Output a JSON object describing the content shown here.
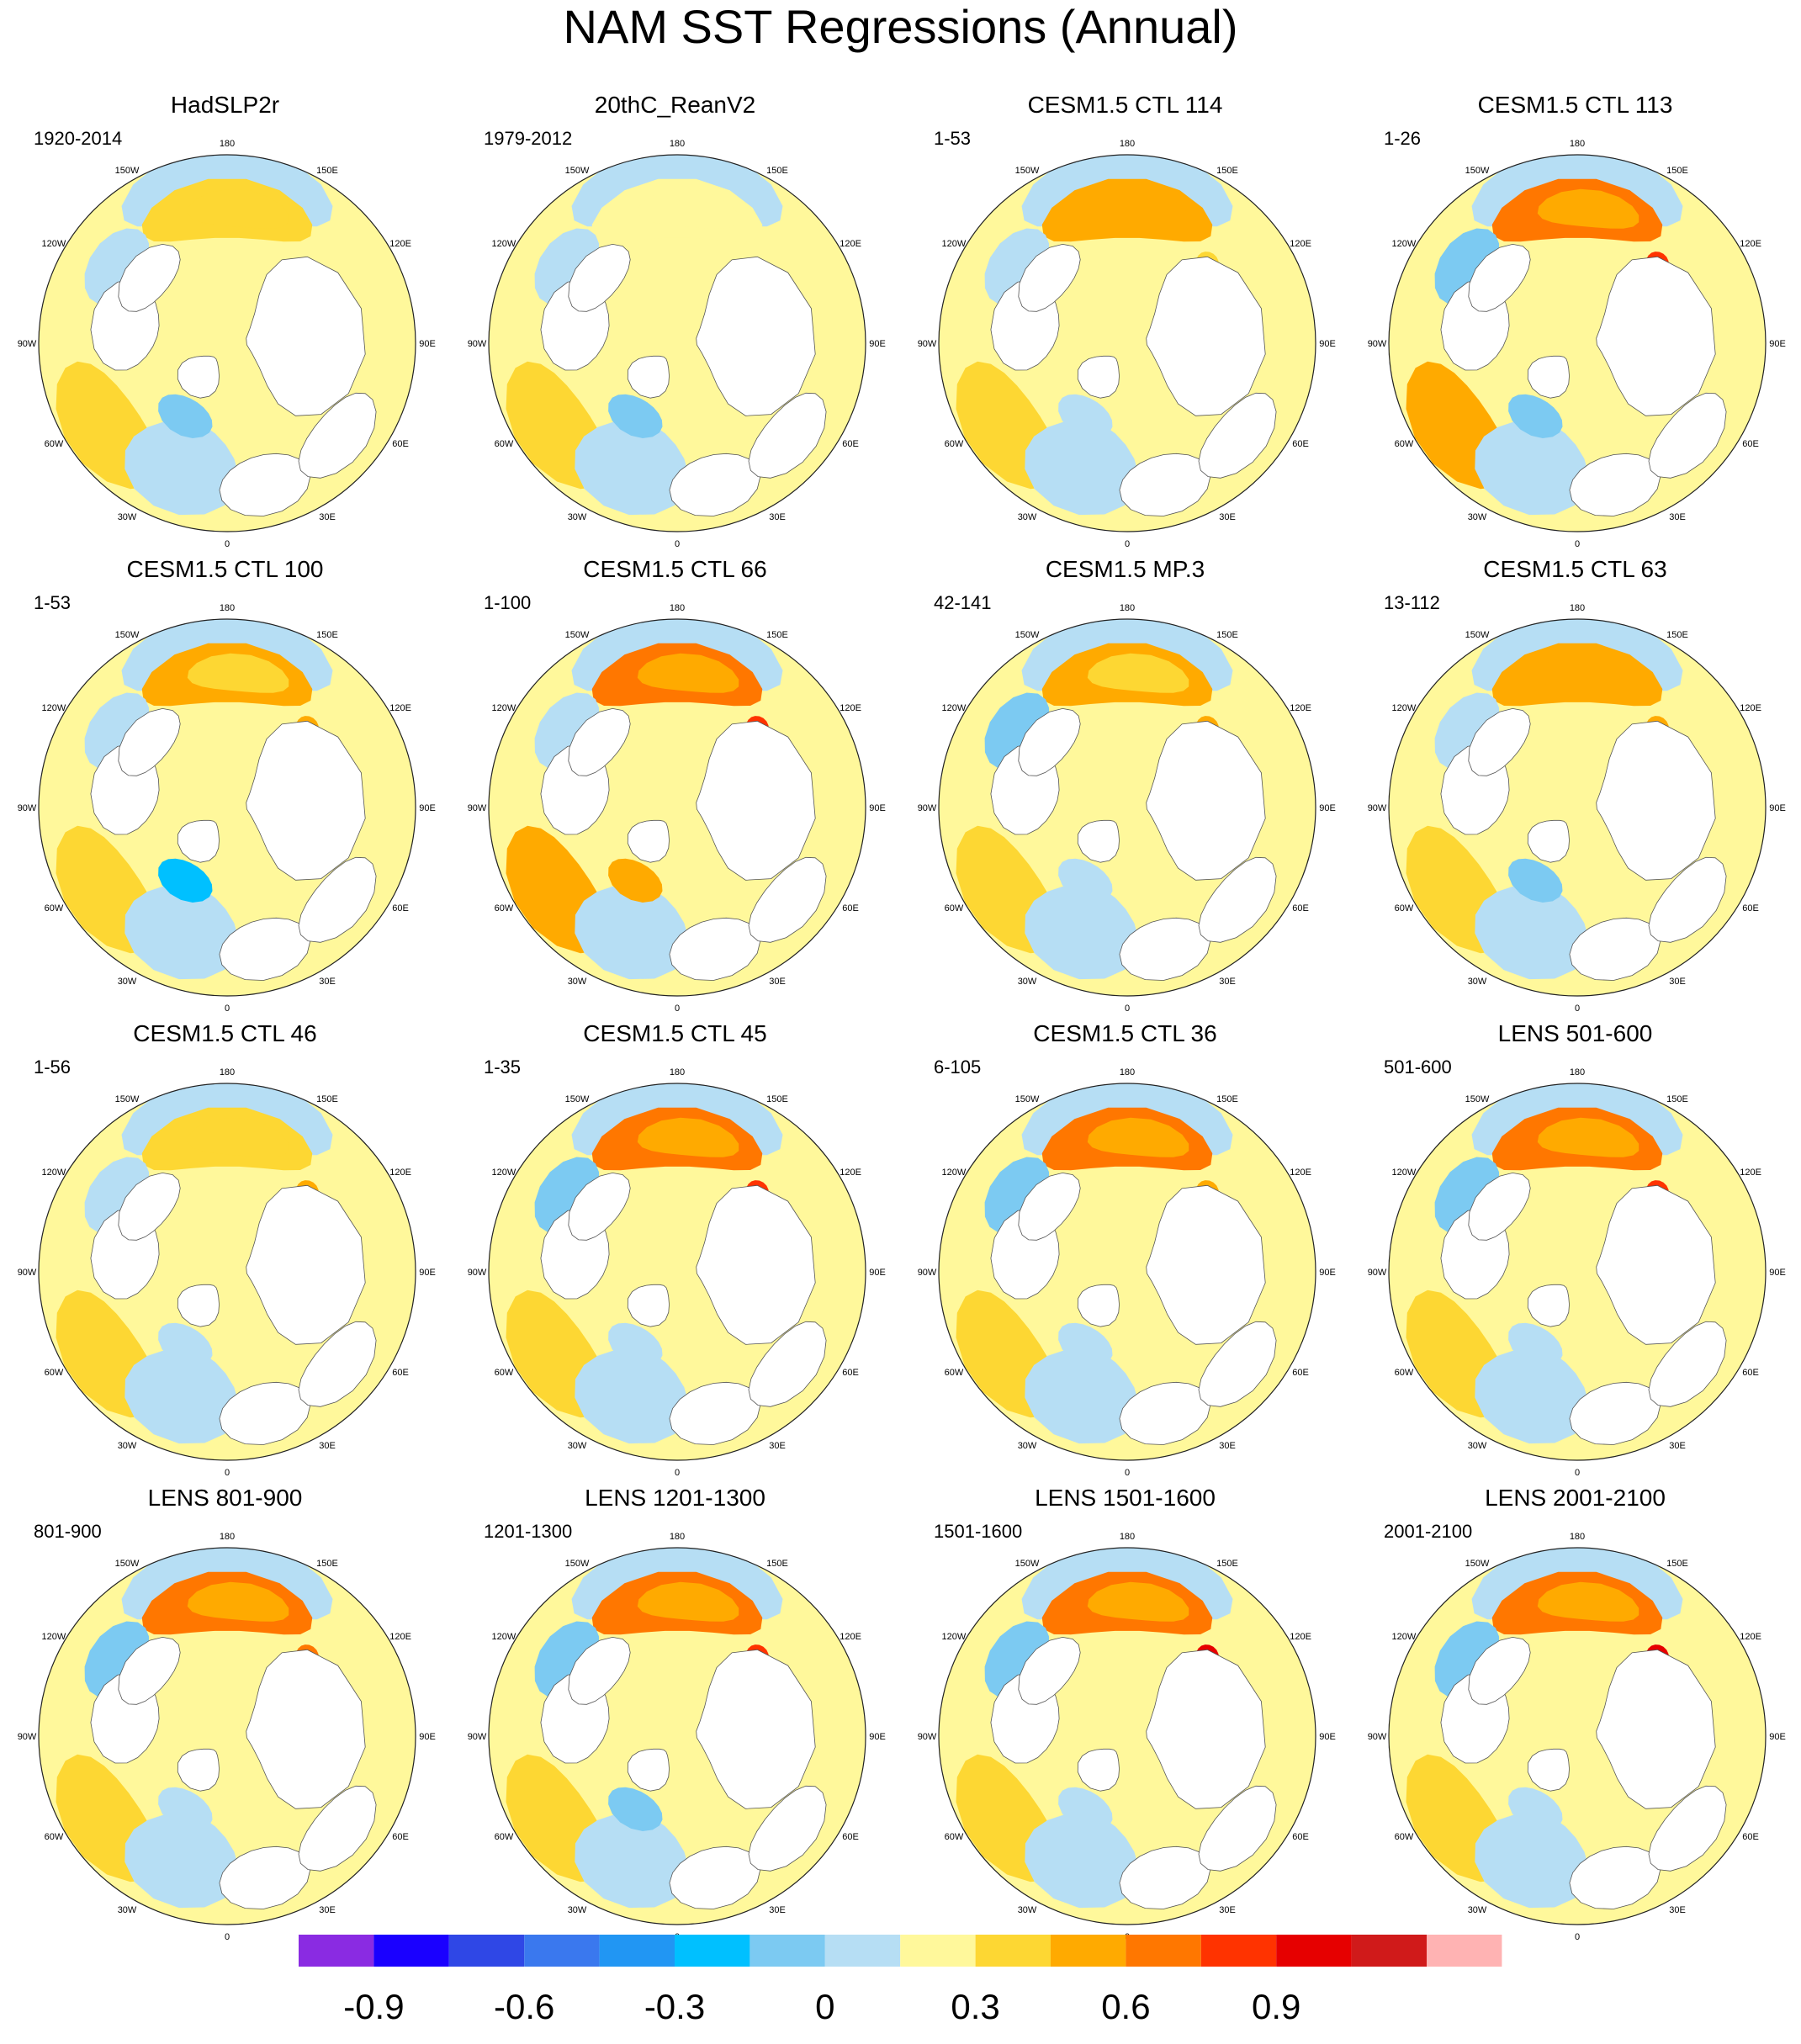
{
  "title": "NAM SST Regressions (Annual)",
  "panels": [
    {
      "title": "HadSLP2r",
      "period": "1920-2014",
      "pattern": {
        "np": 0.25,
        "atl": 0.28,
        "lab": -0.2,
        "west": -0.05,
        "hot": 0.05
      }
    },
    {
      "title": "20thC_ReanV2",
      "period": "1979-2012",
      "pattern": {
        "np": 0.1,
        "atl": 0.25,
        "lab": -0.3,
        "west": -0.05,
        "hot": 0.05
      }
    },
    {
      "title": "CESM1.5 CTL 114",
      "period": "1-53",
      "pattern": {
        "np": 0.3,
        "atl": 0.25,
        "lab": -0.1,
        "west": -0.15,
        "hot": 0.25
      }
    },
    {
      "title": "CESM1.5 CTL 113",
      "period": "1-26",
      "pattern": {
        "np": 0.45,
        "atl": 0.3,
        "lab": -0.2,
        "west": -0.3,
        "hot": 0.7
      }
    },
    {
      "title": "CESM1.5 CTL 100",
      "period": "1-53",
      "pattern": {
        "np": 0.4,
        "atl": 0.25,
        "lab": -0.35,
        "west": -0.15,
        "hot": 0.4
      }
    },
    {
      "title": "CESM1.5 CTL 66",
      "period": "1-100",
      "pattern": {
        "np": 0.45,
        "atl": 0.35,
        "lab": 0.3,
        "west": -0.1,
        "hot": 0.6
      }
    },
    {
      "title": "CESM1.5 MP.3",
      "period": "42-141",
      "pattern": {
        "np": 0.4,
        "atl": 0.25,
        "lab": -0.1,
        "west": -0.2,
        "hot": 0.3
      }
    },
    {
      "title": "CESM1.5 CTL 63",
      "period": "13-112",
      "pattern": {
        "np": 0.3,
        "atl": 0.25,
        "lab": -0.2,
        "west": -0.1,
        "hot": 0.35
      }
    },
    {
      "title": "CESM1.5 CTL 46",
      "period": "1-56",
      "pattern": {
        "np": 0.15,
        "atl": 0.25,
        "lab": -0.15,
        "west": -0.05,
        "hot": 0.35
      }
    },
    {
      "title": "CESM1.5 CTL 45",
      "period": "1-35",
      "pattern": {
        "np": 0.45,
        "atl": 0.25,
        "lab": -0.15,
        "west": -0.3,
        "hot": 0.7
      }
    },
    {
      "title": "CESM1.5 CTL 36",
      "period": "6-105",
      "pattern": {
        "np": 0.45,
        "atl": 0.25,
        "lab": -0.1,
        "west": -0.2,
        "hot": 0.3
      }
    },
    {
      "title": "LENS 501-600",
      "period": "501-600",
      "pattern": {
        "np": 0.45,
        "atl": 0.25,
        "lab": -0.1,
        "west": -0.3,
        "hot": 0.7
      }
    },
    {
      "title": "LENS 801-900",
      "period": "801-900",
      "pattern": {
        "np": 0.45,
        "atl": 0.25,
        "lab": -0.1,
        "west": -0.2,
        "hot": 0.5
      }
    },
    {
      "title": "LENS 1201-1300",
      "period": "1201-1300",
      "pattern": {
        "np": 0.45,
        "atl": 0.25,
        "lab": -0.2,
        "west": -0.2,
        "hot": 0.6
      }
    },
    {
      "title": "LENS 1501-1600",
      "period": "1501-1600",
      "pattern": {
        "np": 0.5,
        "atl": 0.25,
        "lab": -0.15,
        "west": -0.3,
        "hot": 0.75
      }
    },
    {
      "title": "LENS 2001-2100",
      "period": "2001-2100",
      "pattern": {
        "np": 0.45,
        "atl": 0.25,
        "lab": -0.1,
        "west": -0.3,
        "hot": 0.75
      }
    }
  ],
  "lon_labels": [
    "180",
    "150E",
    "120E",
    "90E",
    "60E",
    "30E",
    "0",
    "30W",
    "60W",
    "90W",
    "120W",
    "150W"
  ],
  "colorbar": {
    "levels": [
      -1.05,
      -0.9,
      -0.75,
      -0.6,
      -0.45,
      -0.3,
      -0.15,
      0,
      0.15,
      0.3,
      0.45,
      0.6,
      0.75,
      0.9,
      1.05,
      1.2
    ],
    "colors": [
      "#8a2be2",
      "#1a00ff",
      "#2f47e6",
      "#3a78ee",
      "#2196f3",
      "#00c0ff",
      "#7ccaf2",
      "#b6def4",
      "#fff89b",
      "#fdd733",
      "#ffaa00",
      "#ff7700",
      "#ff3300",
      "#e60000",
      "#d01a1a",
      "#ffb3b3"
    ],
    "tick_labels": [
      "-0.9",
      "-0.6",
      "-0.3",
      "0",
      "0.3",
      "0.6",
      "0.9"
    ],
    "tick_values": [
      -0.9,
      -0.6,
      -0.3,
      0,
      0.3,
      0.6,
      0.9
    ]
  }
}
